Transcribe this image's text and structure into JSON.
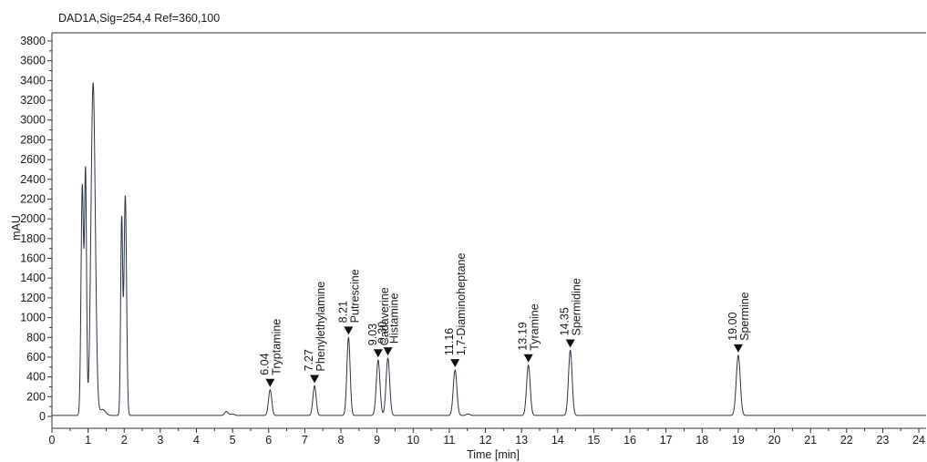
{
  "chart_data": {
    "type": "line",
    "title": "DAD1A,Sig=254,4  Ref=360,100",
    "xlabel": "Time [min]",
    "ylabel": "mAU",
    "xlim": [
      0,
      24.2
    ],
    "ylim": [
      -150,
      3850
    ],
    "x_ticks": [
      0,
      1,
      2,
      3,
      4,
      5,
      6,
      7,
      8,
      9,
      10,
      11,
      12,
      13,
      14,
      15,
      16,
      17,
      18,
      19,
      20,
      21,
      22,
      23,
      24
    ],
    "y_ticks": [
      0,
      200,
      400,
      600,
      800,
      1000,
      1200,
      1400,
      1600,
      1800,
      2000,
      2200,
      2400,
      2600,
      2800,
      3000,
      3200,
      3400,
      3600,
      3800
    ],
    "grid": false,
    "line_color": "#2b3340",
    "baseline": 10,
    "peaks": [
      {
        "rt": 0.84,
        "height": 2330,
        "width": 0.035
      },
      {
        "rt": 0.93,
        "height": 2430,
        "width": 0.028
      },
      {
        "rt": 1.14,
        "height": 3370,
        "width": 0.06
      },
      {
        "rt": 1.4,
        "height": 60,
        "width": 0.08
      },
      {
        "rt": 1.93,
        "height": 1990,
        "width": 0.028
      },
      {
        "rt": 2.03,
        "height": 2230,
        "width": 0.035
      },
      {
        "rt": 4.83,
        "height": 40,
        "width": 0.05
      },
      {
        "rt": 5.0,
        "height": 15,
        "width": 0.05
      },
      {
        "rt": 6.04,
        "height": 260,
        "width": 0.045
      },
      {
        "rt": 7.27,
        "height": 300,
        "width": 0.045
      },
      {
        "rt": 8.21,
        "height": 790,
        "width": 0.045
      },
      {
        "rt": 9.03,
        "height": 560,
        "width": 0.05
      },
      {
        "rt": 9.3,
        "height": 580,
        "width": 0.05
      },
      {
        "rt": 11.16,
        "height": 460,
        "width": 0.05
      },
      {
        "rt": 11.52,
        "height": 15,
        "width": 0.05
      },
      {
        "rt": 13.19,
        "height": 510,
        "width": 0.05
      },
      {
        "rt": 14.35,
        "height": 660,
        "width": 0.05
      },
      {
        "rt": 19.0,
        "height": 610,
        "width": 0.055
      }
    ],
    "annotations": [
      {
        "rt": "6.04",
        "name": "Tryptamine",
        "x": 6.04,
        "y": 260
      },
      {
        "rt": "7.27",
        "name": "Phenylethylamine",
        "x": 7.27,
        "y": 300
      },
      {
        "rt": "8.21",
        "name": "Putrescine",
        "x": 8.21,
        "y": 790
      },
      {
        "rt": "9.03",
        "name": "Cadaverine",
        "x": 9.03,
        "y": 560
      },
      {
        "rt": "9.30",
        "name": "Histamine",
        "x": 9.3,
        "y": 580
      },
      {
        "rt": "11.16",
        "name": "1,7-Diaminoheptane",
        "x": 11.16,
        "y": 460
      },
      {
        "rt": "13.19",
        "name": "Tyramine",
        "x": 13.19,
        "y": 510
      },
      {
        "rt": "14.35",
        "name": "Spermidine",
        "x": 14.35,
        "y": 660
      },
      {
        "rt": "19.00",
        "name": "Spermine",
        "x": 19.0,
        "y": 610
      }
    ]
  }
}
